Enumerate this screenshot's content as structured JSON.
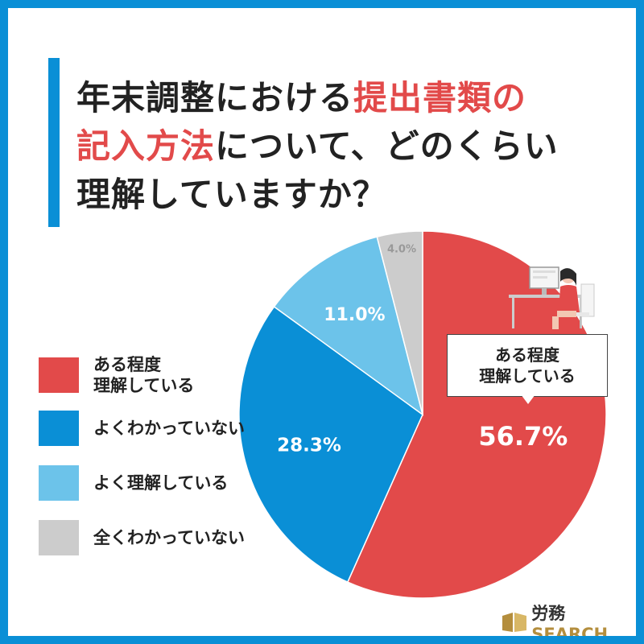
{
  "title": {
    "line1_prefix": "年末調整における",
    "line1_highlight": "提出書類の",
    "line2_highlight": "記入方法",
    "line2_suffix": "について、どのくらい",
    "line3": "理解していますか？"
  },
  "chart_data": {
    "type": "pie",
    "categories": [
      "ある程度理解している",
      "よくわかっていない",
      "よく理解している",
      "全くわかっていない"
    ],
    "values": [
      56.7,
      28.3,
      11.0,
      4.0
    ],
    "colors": [
      "#e24a4a",
      "#0a8fd6",
      "#6cc3ea",
      "#cccccc"
    ],
    "value_labels": [
      "56.7%",
      "28.3%",
      "11.0%",
      "4.0%"
    ],
    "legend_position": "left"
  },
  "legend": [
    {
      "label": "ある程度\n理解している",
      "color": "#e24a4a"
    },
    {
      "label": "よくわかっていない",
      "color": "#0a8fd6"
    },
    {
      "label": "よく理解している",
      "color": "#6cc3ea"
    },
    {
      "label": "全くわかっていない",
      "color": "#cccccc"
    }
  ],
  "callout": {
    "label": "ある程度\n理解している"
  },
  "logo": {
    "jp": "労務",
    "en": "SEARCH"
  },
  "illustration": {
    "icon": "woman-at-computer-icon"
  }
}
